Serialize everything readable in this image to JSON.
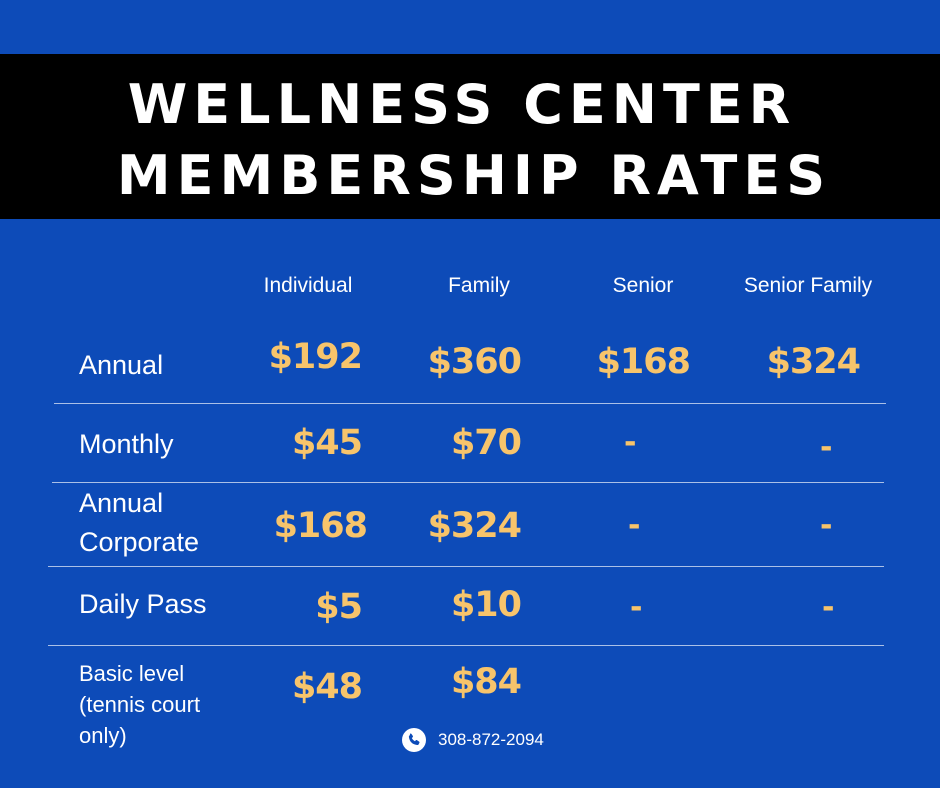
{
  "title": {
    "line1": "WELLNESS CENTER",
    "line2": "MEMBERSHIP RATES"
  },
  "columns": [
    "Individual",
    "Family",
    "Senior",
    "Senior Family"
  ],
  "rows": [
    {
      "label": "Annual",
      "values": [
        "$192",
        "$360",
        "$168",
        "$324"
      ]
    },
    {
      "label": "Monthly",
      "values": [
        "$45",
        "$70",
        "-",
        "-"
      ]
    },
    {
      "label_lines": [
        "Annual",
        "Corporate"
      ],
      "values": [
        "$168",
        "$324",
        "-",
        "-"
      ]
    },
    {
      "label": "Daily Pass",
      "values": [
        "$5",
        "$10",
        "-",
        "-"
      ]
    },
    {
      "label_lines": [
        "Basic level",
        "(tennis court",
        "only)"
      ],
      "values": [
        "$48",
        "$84"
      ]
    }
  ],
  "contact": {
    "icon": "phone-icon",
    "phone": "308-872-2094"
  },
  "colors": {
    "background": "#0d4bb8",
    "title_band": "#000000",
    "price": "#f7c46b",
    "text": "#ffffff"
  }
}
